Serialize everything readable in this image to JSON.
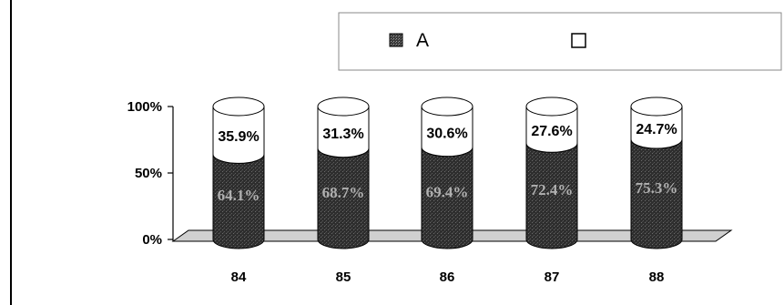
{
  "chart_data": {
    "type": "bar",
    "stacked_percent": true,
    "categories": [
      "84",
      "85",
      "86",
      "87",
      "88"
    ],
    "series": [
      {
        "name": "A",
        "values": [
          64.1,
          68.7,
          69.4,
          72.4,
          75.3
        ],
        "labels": [
          "64.1%",
          "68.7%",
          "69.4%",
          "72.4%",
          "75.3%"
        ],
        "color": "#3a3a3a"
      },
      {
        "name": "",
        "values": [
          35.9,
          31.3,
          30.6,
          27.6,
          24.7
        ],
        "labels": [
          "35.9%",
          "31.3%",
          "30.6%",
          "27.6%",
          "24.7%"
        ],
        "color": "#ffffff"
      }
    ],
    "yticks": [
      "0%",
      "50%",
      "100%"
    ],
    "ylim": [
      0,
      100
    ],
    "legend_position": "top-right",
    "grid": false
  }
}
